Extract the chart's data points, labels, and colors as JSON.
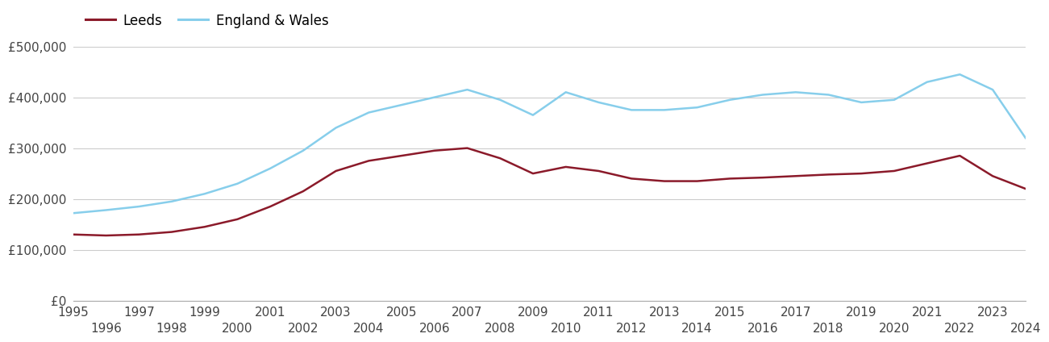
{
  "years": [
    1995,
    1996,
    1997,
    1998,
    1999,
    2000,
    2001,
    2002,
    2003,
    2004,
    2005,
    2006,
    2007,
    2008,
    2009,
    2010,
    2011,
    2012,
    2013,
    2014,
    2015,
    2016,
    2017,
    2018,
    2019,
    2020,
    2021,
    2022,
    2023,
    2024
  ],
  "leeds": [
    130000,
    128000,
    130000,
    135000,
    145000,
    160000,
    185000,
    215000,
    255000,
    275000,
    285000,
    295000,
    300000,
    280000,
    250000,
    263000,
    255000,
    240000,
    235000,
    235000,
    240000,
    242000,
    245000,
    248000,
    250000,
    255000,
    270000,
    285000,
    245000,
    220000
  ],
  "england_wales": [
    172000,
    178000,
    185000,
    195000,
    210000,
    230000,
    260000,
    295000,
    340000,
    370000,
    385000,
    400000,
    415000,
    395000,
    365000,
    410000,
    390000,
    375000,
    375000,
    380000,
    395000,
    405000,
    410000,
    405000,
    390000,
    395000,
    430000,
    445000,
    415000,
    320000
  ],
  "leeds_color": "#8B1A2A",
  "england_wales_color": "#87CEEB",
  "background_color": "#ffffff",
  "grid_color": "#cccccc",
  "legend_labels": [
    "Leeds",
    "England & Wales"
  ],
  "ylim": [
    0,
    500000
  ],
  "yticks": [
    0,
    100000,
    200000,
    300000,
    400000,
    500000
  ],
  "ytick_labels": [
    "£0",
    "£100,000",
    "£200,000",
    "£300,000",
    "£400,000",
    "£500,000"
  ],
  "line_width": 1.8,
  "legend_fontsize": 12,
  "tick_fontsize": 11
}
